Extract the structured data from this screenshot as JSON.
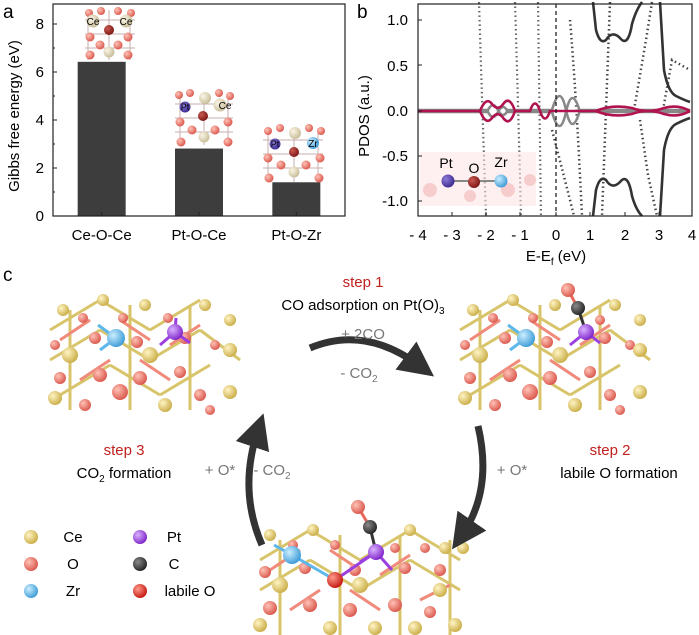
{
  "panel_a": {
    "letter": "a",
    "ylabel": "Gibbs free energy (eV)",
    "yticks": [
      "0",
      "2",
      "4",
      "6",
      "8"
    ],
    "bar_labels": [
      [
        "Ce",
        "Ce"
      ],
      [
        "Pt",
        "Ce"
      ],
      [
        "Pt",
        "Zr"
      ]
    ]
  },
  "panel_b": {
    "letter": "b",
    "ylabel": "PDOS (a.u.)",
    "xlabel_main": "E-E",
    "xlabel_sub": "f",
    "xlabel_unit": " (eV)",
    "yticks": [
      "-1.0",
      "-0.5",
      "0.0",
      "0.5",
      "1.0"
    ],
    "xticks": [
      "- 4",
      "- 3",
      "- 2",
      "- 1",
      "0",
      "1",
      "2",
      "3",
      "4"
    ],
    "inset_labels": [
      "Pt",
      "O",
      "Zr"
    ]
  },
  "panel_c": {
    "letter": "c",
    "step1_title": "step 1",
    "step1_desc": "CO adsorption on Pt(O)",
    "step1_desc_sub": "3",
    "step2_title": "step 2",
    "step2_desc": "labile O formation",
    "step3_title": "step 3",
    "step3_desc_pre": "CO",
    "step3_desc_sub": "2",
    "step3_desc_post": " formation",
    "arrow1_top": "+ 2CO",
    "arrow1_bottom_pre": "- CO",
    "arrow1_bottom_sub": "2",
    "arrow2_label": "+ O*",
    "arrow3_label_a": "+ O*",
    "arrow3_label_b_pre": "- CO",
    "arrow3_label_b_sub": "2",
    "legend": [
      {
        "label": "Ce",
        "color": "#e6cf6e"
      },
      {
        "label": "O",
        "color": "#f07a68"
      },
      {
        "label": "Zr",
        "color": "#5cb8ec"
      },
      {
        "label": "Pt",
        "color": "#9b3fe0"
      },
      {
        "label": "C",
        "color": "#3c3c3c"
      },
      {
        "label": "labile O",
        "color": "#e52a22"
      }
    ]
  },
  "chart_data": [
    {
      "type": "bar",
      "categories": [
        "Ce-O-Ce",
        "Pt-O-Ce",
        "Pt-O-Zr"
      ],
      "values": [
        6.4,
        2.8,
        1.4
      ],
      "ylabel": "Gibbs free energy (eV)",
      "ylim": [
        0,
        8.8
      ],
      "color": "#3d3d3d"
    },
    {
      "type": "line",
      "xlabel": "E-Ef (eV)",
      "ylabel": "PDOS (a.u.)",
      "xlim": [
        -4,
        4
      ],
      "ylim": [
        -1.2,
        1.2
      ]
    }
  ]
}
